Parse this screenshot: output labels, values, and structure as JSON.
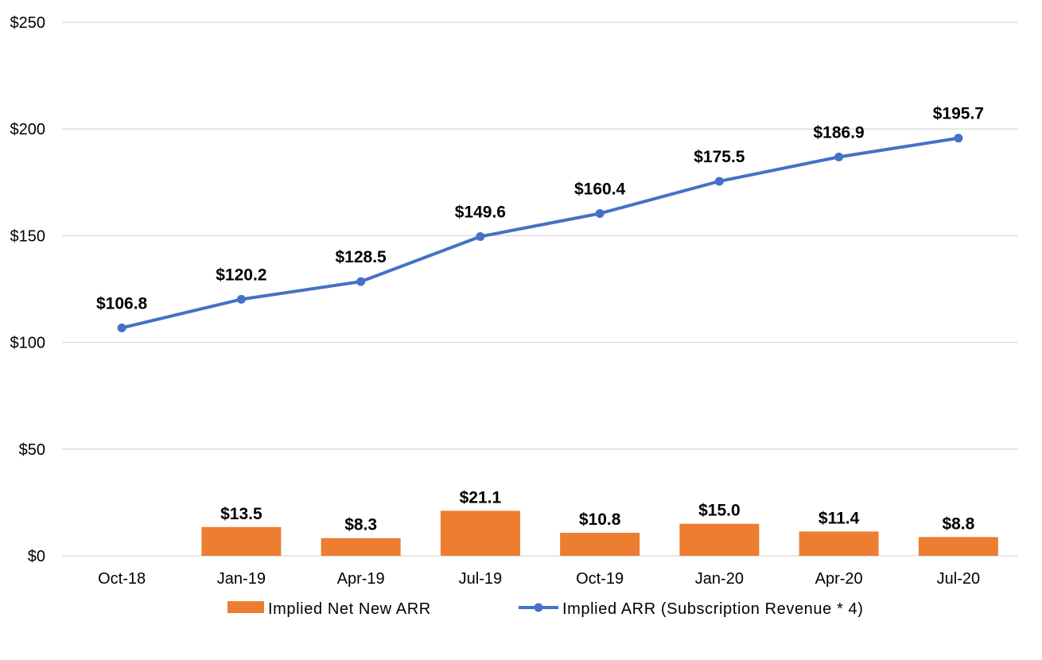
{
  "chart_data": {
    "type": "bar",
    "categories": [
      "Oct-18",
      "Jan-19",
      "Apr-19",
      "Jul-19",
      "Oct-19",
      "Jan-20",
      "Apr-20",
      "Jul-20"
    ],
    "series": [
      {
        "name": "Implied Net New ARR",
        "type": "bar",
        "color": "#ED7D31",
        "values": [
          null,
          13.5,
          8.3,
          21.1,
          10.8,
          15.0,
          11.4,
          8.8
        ],
        "labels": [
          "",
          "$13.5",
          "$8.3",
          "$21.1",
          "$10.8",
          "$15.0",
          "$11.4",
          "$8.8"
        ]
      },
      {
        "name": "Implied ARR (Subscription Revenue * 4)",
        "type": "line",
        "color": "#4472C4",
        "values": [
          106.8,
          120.2,
          128.5,
          149.6,
          160.4,
          175.5,
          186.9,
          195.7
        ],
        "labels": [
          "$106.8",
          "$120.2",
          "$128.5",
          "$149.6",
          "$160.4",
          "$175.5",
          "$186.9",
          "$195.7"
        ]
      }
    ],
    "ylim": [
      0,
      250
    ],
    "yticks": [
      0,
      50,
      100,
      150,
      200,
      250
    ],
    "ytick_labels": [
      "$0",
      "$50",
      "$100",
      "$150",
      "$200",
      "$250"
    ],
    "grid": true,
    "legend_position": "bottom",
    "title": "",
    "xlabel": "",
    "ylabel": ""
  }
}
